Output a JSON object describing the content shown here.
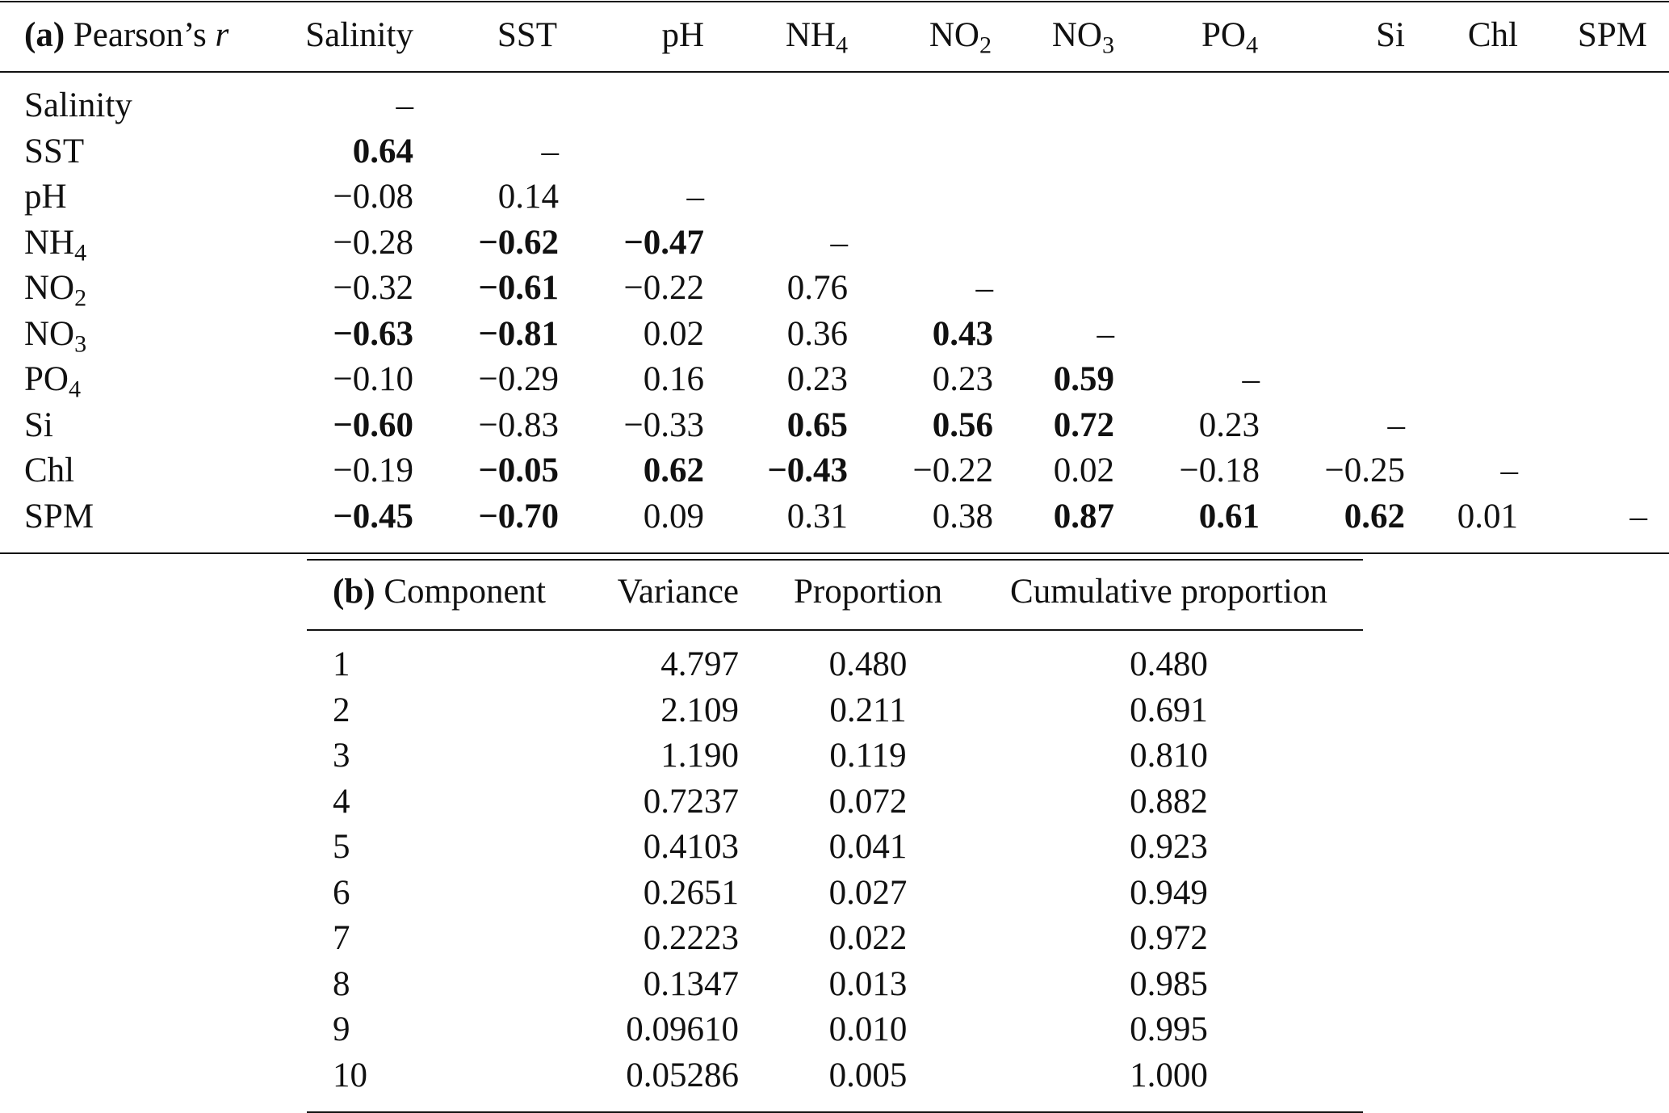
{
  "table_a": {
    "label": "(a)",
    "title_text": "Pearson’s ",
    "title_var": "r",
    "columns": [
      {
        "base": "Salinity",
        "sub": ""
      },
      {
        "base": "SST",
        "sub": ""
      },
      {
        "base": "pH",
        "sub": ""
      },
      {
        "base": "NH",
        "sub": "4"
      },
      {
        "base": "NO",
        "sub": "2"
      },
      {
        "base": "NO",
        "sub": "3"
      },
      {
        "base": "PO",
        "sub": "4"
      },
      {
        "base": "Si",
        "sub": ""
      },
      {
        "base": "Chl",
        "sub": ""
      },
      {
        "base": "SPM",
        "sub": ""
      }
    ],
    "rows": [
      {
        "base": "Salinity",
        "sub": "",
        "cells": [
          {
            "v": "–",
            "b": false
          }
        ]
      },
      {
        "base": "SST",
        "sub": "",
        "cells": [
          {
            "v": "0.64",
            "b": true
          },
          {
            "v": "–",
            "b": false
          }
        ]
      },
      {
        "base": "pH",
        "sub": "",
        "cells": [
          {
            "v": "−0.08",
            "b": false
          },
          {
            "v": "0.14",
            "b": false
          },
          {
            "v": "–",
            "b": false
          }
        ]
      },
      {
        "base": "NH",
        "sub": "4",
        "cells": [
          {
            "v": "−0.28",
            "b": false
          },
          {
            "v": "−0.62",
            "b": true
          },
          {
            "v": "−0.47",
            "b": true
          },
          {
            "v": "–",
            "b": false
          }
        ]
      },
      {
        "base": "NO",
        "sub": "2",
        "cells": [
          {
            "v": "−0.32",
            "b": false
          },
          {
            "v": "−0.61",
            "b": true
          },
          {
            "v": "−0.22",
            "b": false
          },
          {
            "v": "0.76",
            "b": false
          },
          {
            "v": "–",
            "b": false
          }
        ]
      },
      {
        "base": "NO",
        "sub": "3",
        "cells": [
          {
            "v": "−0.63",
            "b": true
          },
          {
            "v": "−0.81",
            "b": true
          },
          {
            "v": "0.02",
            "b": false
          },
          {
            "v": "0.36",
            "b": false
          },
          {
            "v": "0.43",
            "b": true
          },
          {
            "v": "–",
            "b": false
          }
        ]
      },
      {
        "base": "PO",
        "sub": "4",
        "cells": [
          {
            "v": "−0.10",
            "b": false
          },
          {
            "v": "−0.29",
            "b": false
          },
          {
            "v": "0.16",
            "b": false
          },
          {
            "v": "0.23",
            "b": false
          },
          {
            "v": "0.23",
            "b": false
          },
          {
            "v": "0.59",
            "b": true
          },
          {
            "v": "–",
            "b": false
          }
        ]
      },
      {
        "base": "Si",
        "sub": "",
        "cells": [
          {
            "v": "−0.60",
            "b": true
          },
          {
            "v": "−0.83",
            "b": false
          },
          {
            "v": "−0.33",
            "b": false
          },
          {
            "v": "0.65",
            "b": true
          },
          {
            "v": "0.56",
            "b": true
          },
          {
            "v": "0.72",
            "b": true
          },
          {
            "v": "0.23",
            "b": false
          },
          {
            "v": "–",
            "b": false
          }
        ]
      },
      {
        "base": "Chl",
        "sub": "",
        "cells": [
          {
            "v": "−0.19",
            "b": false
          },
          {
            "v": "−0.05",
            "b": true
          },
          {
            "v": "0.62",
            "b": true
          },
          {
            "v": "−0.43",
            "b": true
          },
          {
            "v": "−0.22",
            "b": false
          },
          {
            "v": "0.02",
            "b": false
          },
          {
            "v": "−0.18",
            "b": false
          },
          {
            "v": "−0.25",
            "b": false
          },
          {
            "v": "–",
            "b": false
          }
        ]
      },
      {
        "base": "SPM",
        "sub": "",
        "cells": [
          {
            "v": "−0.45",
            "b": true
          },
          {
            "v": "−0.70",
            "b": true
          },
          {
            "v": "0.09",
            "b": false
          },
          {
            "v": "0.31",
            "b": false
          },
          {
            "v": "0.38",
            "b": false
          },
          {
            "v": "0.87",
            "b": true
          },
          {
            "v": "0.61",
            "b": true
          },
          {
            "v": "0.62",
            "b": true
          },
          {
            "v": "0.01",
            "b": false
          },
          {
            "v": "–",
            "b": false
          }
        ]
      }
    ]
  },
  "table_b": {
    "label": "(b)",
    "headers": [
      "Component",
      "Variance",
      "Proportion",
      "Cumulative proportion"
    ],
    "rows": [
      [
        "1",
        "4.797",
        "0.480",
        "0.480"
      ],
      [
        "2",
        "2.109",
        "0.211",
        "0.691"
      ],
      [
        "3",
        "1.190",
        "0.119",
        "0.810"
      ],
      [
        "4",
        "0.7237",
        "0.072",
        "0.882"
      ],
      [
        "5",
        "0.4103",
        "0.041",
        "0.923"
      ],
      [
        "6",
        "0.2651",
        "0.027",
        "0.949"
      ],
      [
        "7",
        "0.2223",
        "0.022",
        "0.972"
      ],
      [
        "8",
        "0.1347",
        "0.013",
        "0.985"
      ],
      [
        "9",
        "0.09610",
        "0.010",
        "0.995"
      ],
      [
        "10",
        "0.05286",
        "0.005",
        "1.000"
      ]
    ]
  }
}
